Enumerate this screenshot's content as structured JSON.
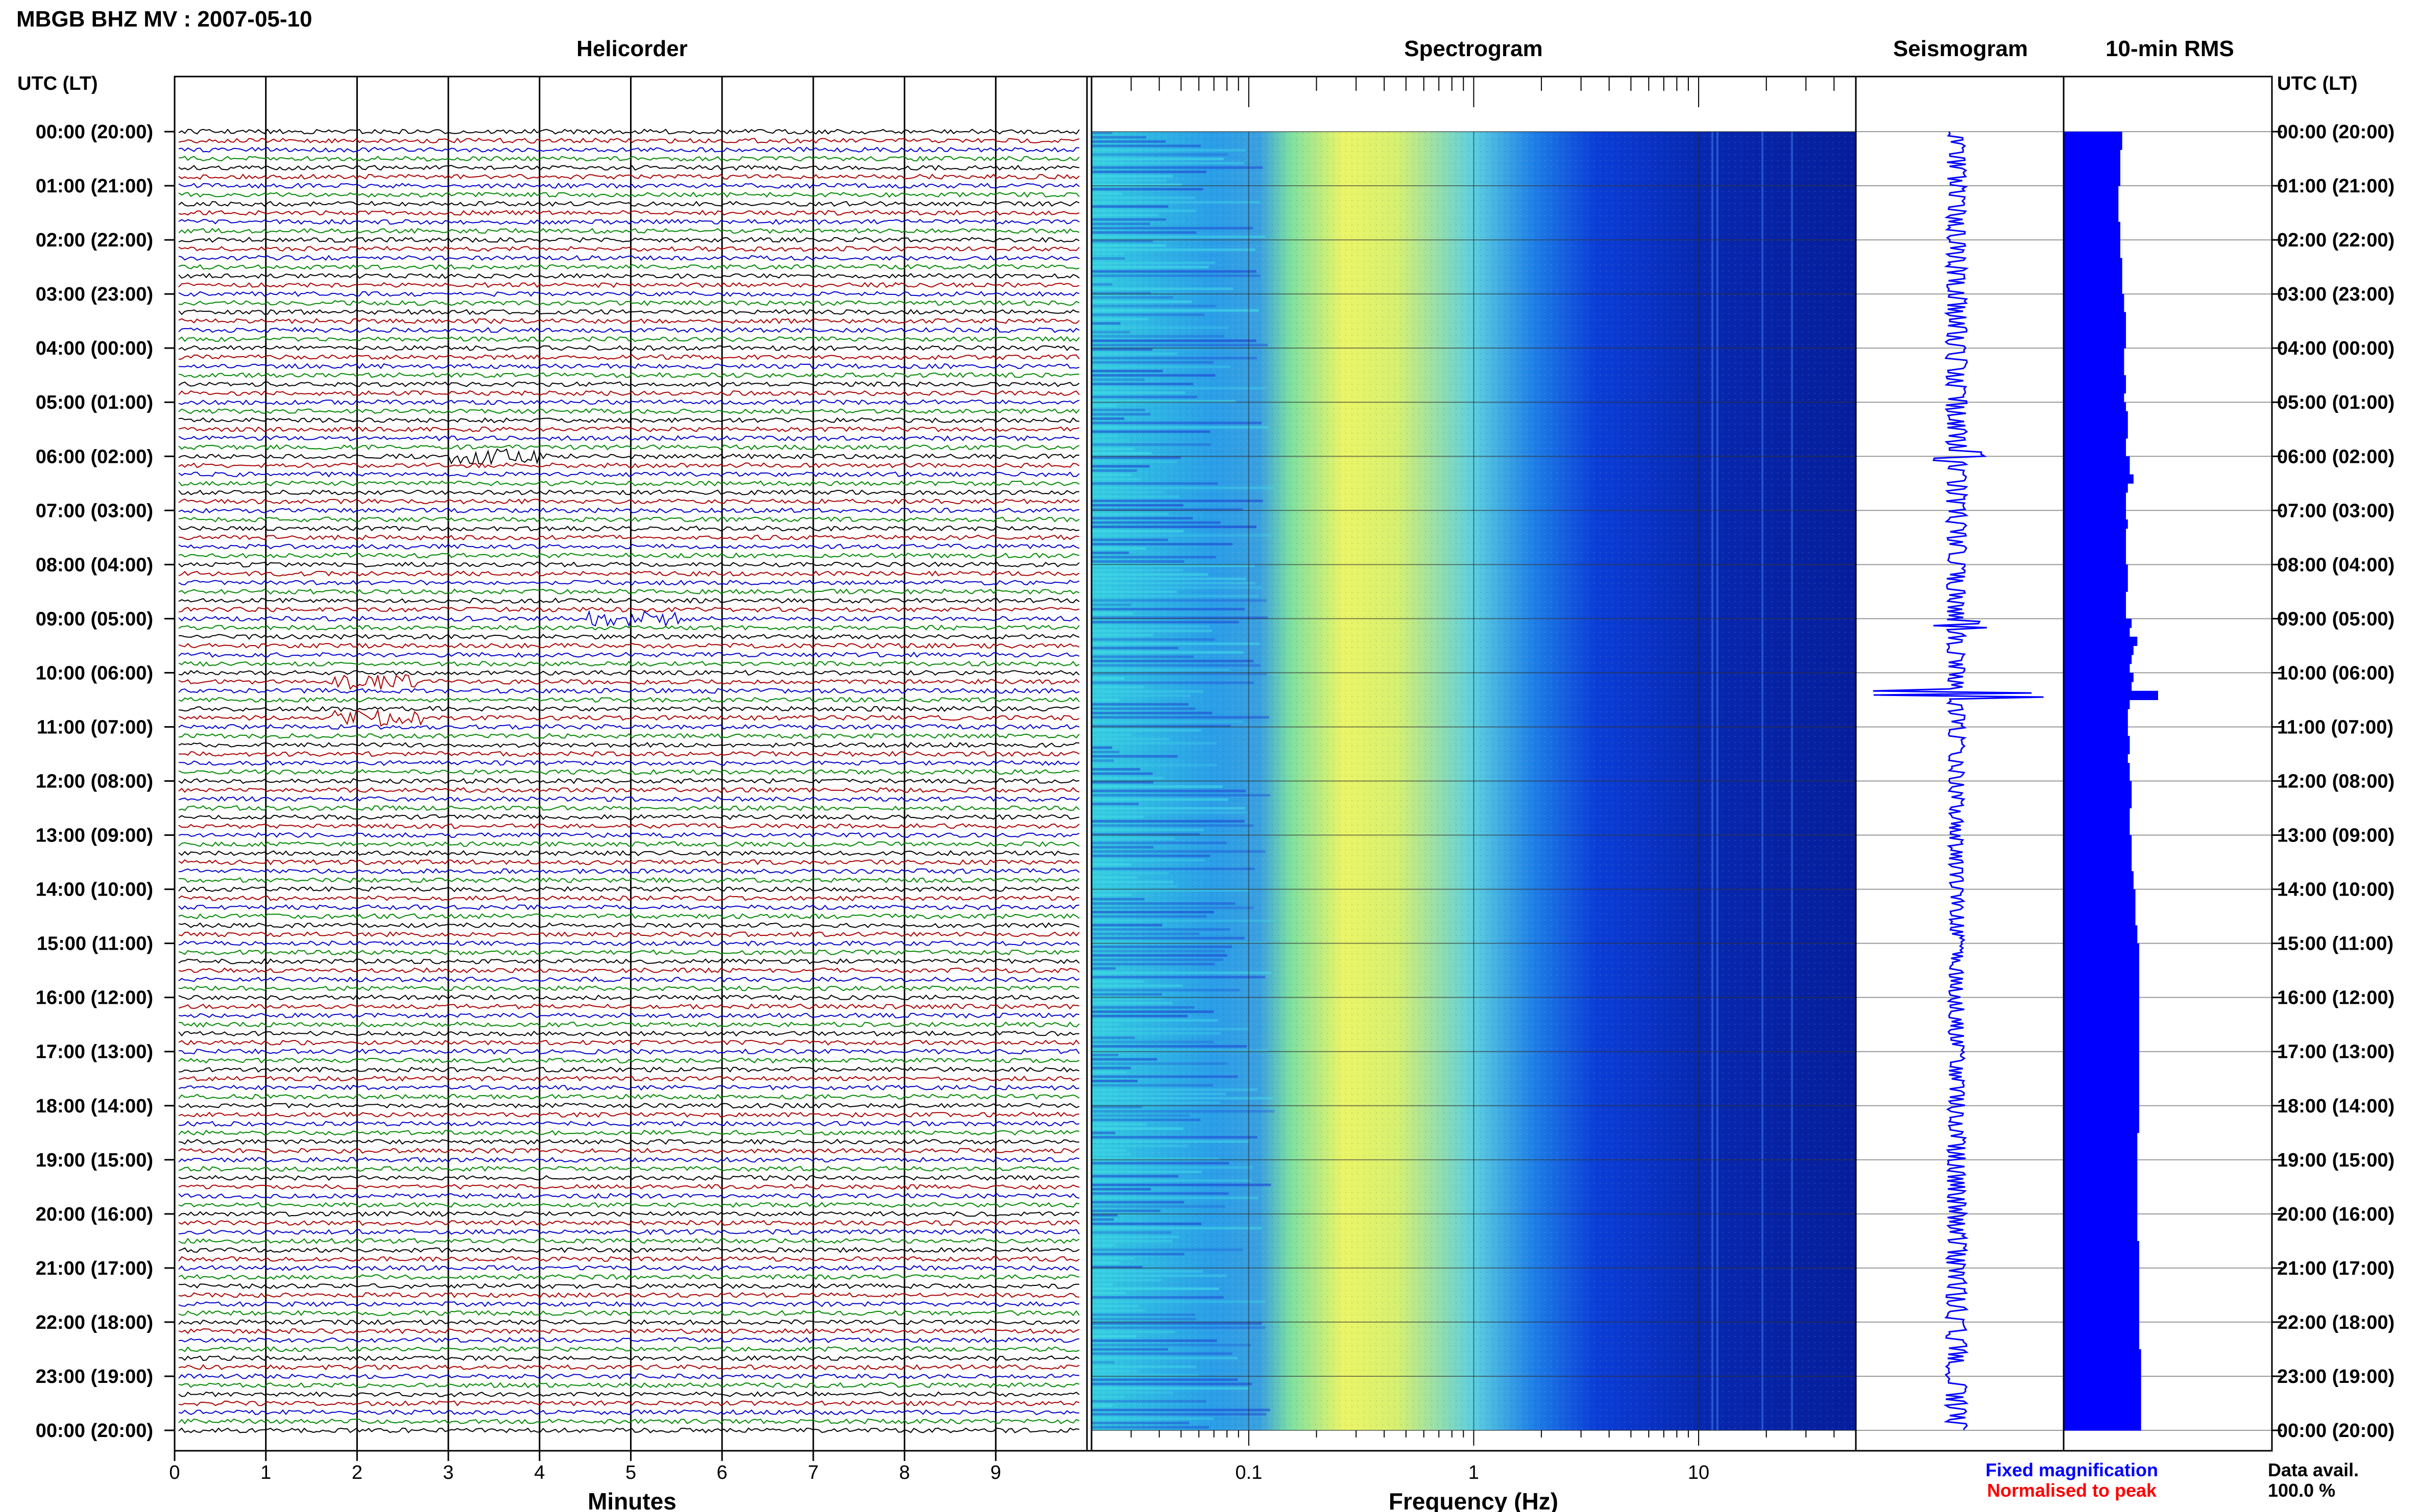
{
  "title": "MBGB BHZ MV : 2007-05-10",
  "panels": {
    "helicorder": "Helicorder",
    "spectrogram": "Spectrogram",
    "seismogram": "Seismogram",
    "rms": "10-min RMS"
  },
  "axis_headers": {
    "left": "UTC (LT)",
    "right": "UTC (LT)"
  },
  "time_labels": [
    "00:00 (20:00)",
    "01:00 (21:00)",
    "02:00 (22:00)",
    "03:00 (23:00)",
    "04:00 (00:00)",
    "05:00 (01:00)",
    "06:00 (02:00)",
    "07:00 (03:00)",
    "08:00 (04:00)",
    "09:00 (05:00)",
    "10:00 (06:00)",
    "11:00 (07:00)",
    "12:00 (08:00)",
    "13:00 (09:00)",
    "14:00 (10:00)",
    "15:00 (11:00)",
    "16:00 (12:00)",
    "17:00 (13:00)",
    "18:00 (14:00)",
    "19:00 (15:00)",
    "20:00 (16:00)",
    "21:00 (17:00)",
    "22:00 (18:00)",
    "23:00 (19:00)",
    "00:00 (20:00)"
  ],
  "helicorder_xlabel": "Minutes",
  "helicorder_ticks": [
    "0",
    "1",
    "2",
    "3",
    "4",
    "5",
    "6",
    "7",
    "8",
    "9"
  ],
  "spectrogram_xlabel": "Frequency (Hz)",
  "spectrogram_ticks": [
    "0.1",
    "1",
    "10"
  ],
  "legend": {
    "fixed": "Fixed magnification",
    "normalised": "Normalised to peak",
    "fixed_color": "#0000ff",
    "normalised_color": "#ff0000"
  },
  "data_avail": {
    "label": "Data avail.",
    "value": "100.0 %"
  },
  "colors": {
    "trace_cycle": [
      "#000000",
      "#aa0000",
      "#0000cc",
      "#008800"
    ],
    "spectrogram_low": "#0000aa",
    "spectrogram_high": "#ffff55",
    "rms_fill": "#0000ff"
  },
  "chart_data": [
    {
      "type": "line",
      "title": "Helicorder",
      "xlabel": "Minutes",
      "xlim": [
        0,
        10
      ],
      "rows_per_hour": 6,
      "hours": 24,
      "events": [
        {
          "time_utc": "06:00",
          "minute": 3.5
        },
        {
          "time_utc": "09:00",
          "minute": 5.0
        },
        {
          "time_utc": "10:10",
          "minute": 2.2
        },
        {
          "time_utc": "10:50",
          "minute": 2.2
        }
      ]
    },
    {
      "type": "heatmap",
      "title": "Spectrogram",
      "xlabel": "Frequency (Hz)",
      "xscale": "log",
      "xlim": [
        0.02,
        50
      ],
      "xticks": [
        0.1,
        1,
        10
      ]
    },
    {
      "type": "line",
      "title": "Seismogram"
    },
    {
      "type": "bar",
      "title": "10-min RMS",
      "orientation": "horizontal",
      "values": [
        0.62,
        0.62,
        0.6,
        0.6,
        0.6,
        0.6,
        0.58,
        0.58,
        0.58,
        0.58,
        0.6,
        0.6,
        0.6,
        0.6,
        0.62,
        0.62,
        0.62,
        0.62,
        0.64,
        0.64,
        0.66,
        0.66,
        0.66,
        0.66,
        0.64,
        0.64,
        0.64,
        0.66,
        0.66,
        0.64,
        0.66,
        0.68,
        0.68,
        0.68,
        0.66,
        0.66,
        0.7,
        0.7,
        0.74,
        0.68,
        0.66,
        0.66,
        0.66,
        0.68,
        0.66,
        0.66,
        0.66,
        0.66,
        0.68,
        0.68,
        0.68,
        0.66,
        0.66,
        0.66,
        0.72,
        0.7,
        0.78,
        0.74,
        0.72,
        0.7,
        0.74,
        0.72,
        1.0,
        0.7,
        0.68,
        0.68,
        0.68,
        0.7,
        0.7,
        0.68,
        0.7,
        0.7,
        0.72,
        0.72,
        0.72,
        0.7,
        0.7,
        0.7,
        0.72,
        0.72,
        0.72,
        0.72,
        0.74,
        0.74,
        0.76,
        0.76,
        0.76,
        0.76,
        0.78,
        0.78,
        0.8,
        0.8,
        0.8,
        0.8,
        0.8,
        0.8,
        0.8,
        0.8,
        0.8,
        0.8,
        0.8,
        0.8,
        0.8,
        0.8,
        0.8,
        0.8,
        0.8,
        0.8,
        0.8,
        0.8,
        0.8,
        0.78,
        0.78,
        0.78,
        0.78,
        0.78,
        0.78,
        0.78,
        0.78,
        0.78,
        0.78,
        0.78,
        0.78,
        0.8,
        0.8,
        0.8,
        0.8,
        0.8,
        0.8,
        0.8,
        0.8,
        0.8,
        0.8,
        0.8,
        0.8,
        0.82,
        0.82,
        0.82,
        0.82,
        0.82,
        0.82,
        0.82,
        0.82,
        0.82
      ]
    }
  ]
}
